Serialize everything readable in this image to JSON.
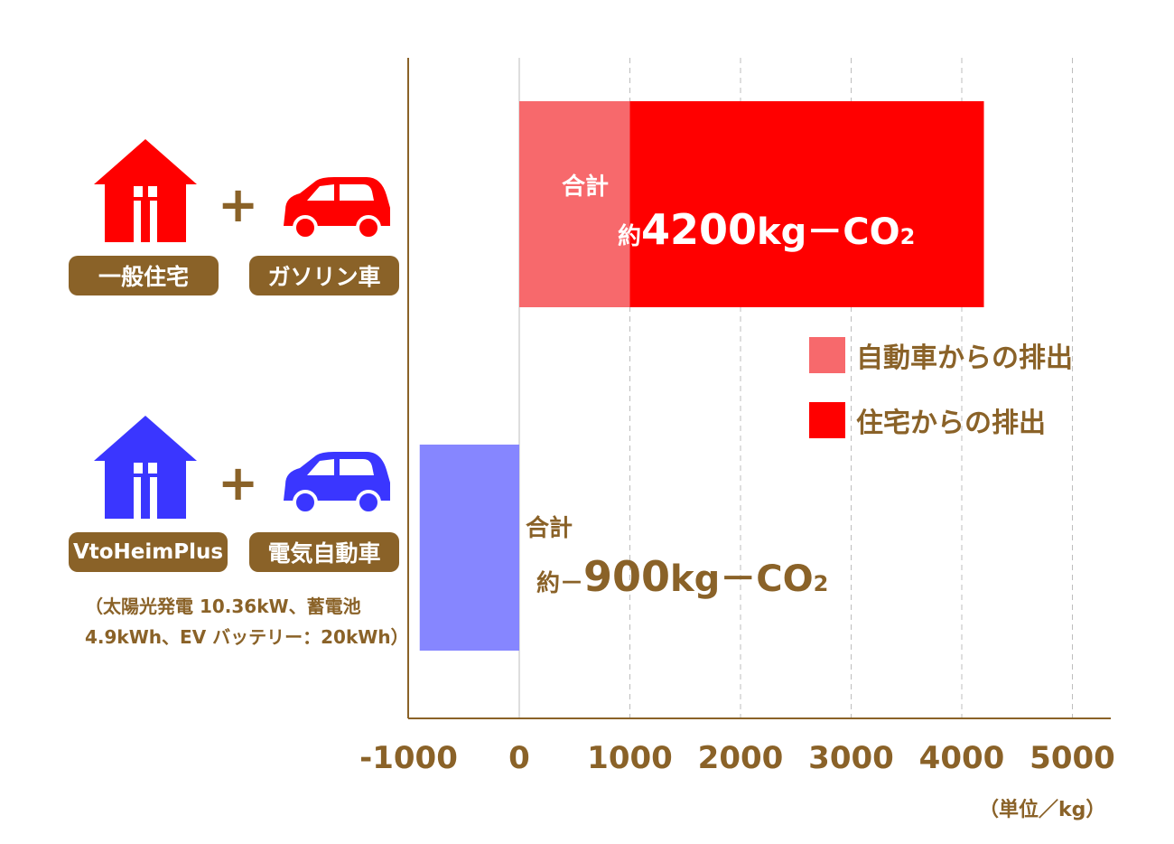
{
  "chart_data": {
    "type": "bar",
    "orientation": "horizontal",
    "stacked": true,
    "categories": [
      "一般住宅 + ガソリン車",
      "VtoHeimPlus + 電気自動車"
    ],
    "series": [
      {
        "name": "自動車からの排出",
        "values": [
          1000,
          -900
        ],
        "colors": [
          "#f7696c",
          "#8686ff"
        ]
      },
      {
        "name": "住宅からの排出",
        "values": [
          3200,
          0
        ],
        "color": "#ff0000"
      }
    ],
    "xlim": [
      -1000,
      5300
    ],
    "x_ticks": [
      -1000,
      0,
      1000,
      2000,
      3000,
      4000,
      5000
    ],
    "x_tick_labels": [
      "-1000",
      "0",
      "1000",
      "2000",
      "3000",
      "4000",
      "5000"
    ],
    "grid": "vertical dashed",
    "unit_label": "（単位／kg）",
    "legend_position": "right-middle",
    "annotations": [
      {
        "label": "合計",
        "prefix": "約",
        "value": "4200",
        "unit": "kg－CO",
        "sub": "2"
      },
      {
        "label": "合計",
        "prefix": "約－",
        "value": "900",
        "unit": "kg－CO",
        "sub": "2"
      }
    ]
  },
  "rows": [
    {
      "house_label": "一般住宅",
      "car_label": "ガソリン車",
      "house_icon": "house-icon",
      "car_icon": "car-icon",
      "plus": "+",
      "color": "#ff0000"
    },
    {
      "house_label": "VtoHeimPlus",
      "car_label": "電気自動車",
      "house_icon": "house-icon",
      "car_icon": "car-icon",
      "plus": "+",
      "color": "#3a36ff",
      "note_line1": "（太陽光発電 10.36kW、蓄電池",
      "note_line2": "4.9kWh、EV バッテリー：20kWh）"
    }
  ],
  "colors": {
    "axis": "#8a6228",
    "text": "#8a6228",
    "car_bar_red": "#f7696c",
    "house_bar": "#ff0000",
    "ev_bar": "#8686ff",
    "total_red_text": "#ffffff"
  }
}
